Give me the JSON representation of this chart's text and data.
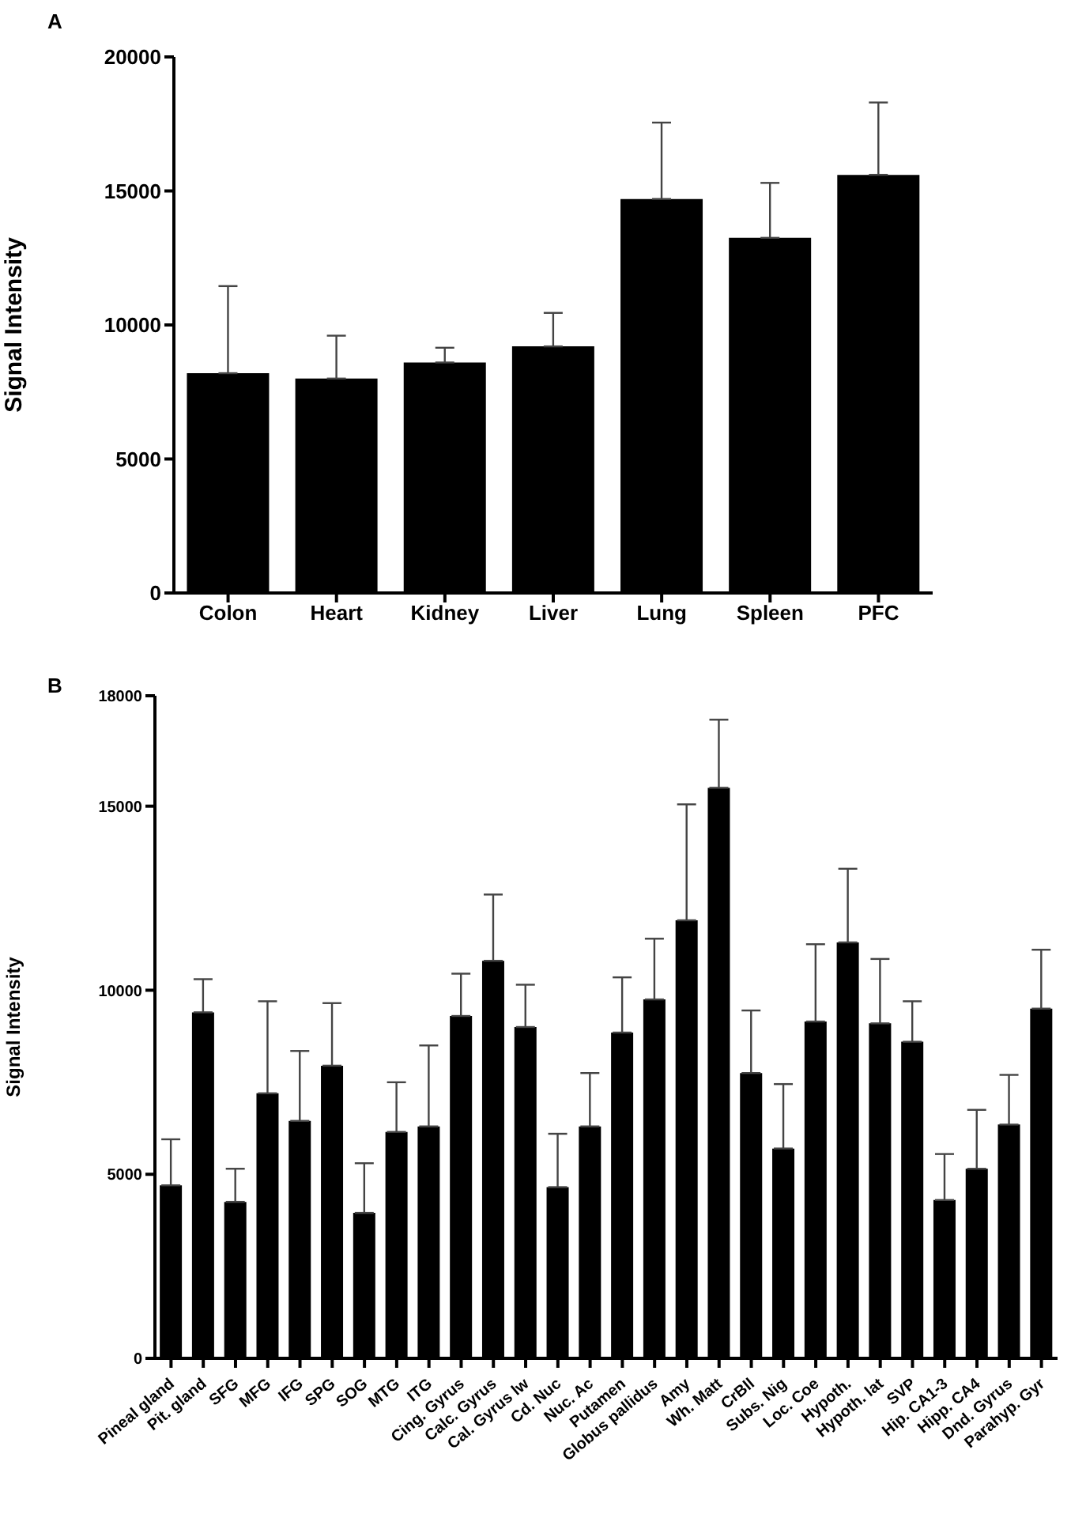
{
  "chart_data": [
    {
      "type": "bar",
      "title": "A",
      "ylabel": "Signal Intensity",
      "categories": [
        "Colon",
        "Heart",
        "Kidney",
        "Liver",
        "Lung",
        "Spleen",
        "PFC"
      ],
      "values": [
        8200,
        8000,
        8600,
        9200,
        14700,
        13250,
        15600
      ],
      "errors": [
        [
          8200,
          11450
        ],
        [
          8000,
          9600
        ],
        [
          8600,
          9150
        ],
        [
          9200,
          10450
        ],
        [
          14700,
          17550
        ],
        [
          13250,
          15300
        ],
        [
          15600,
          18300
        ]
      ],
      "color": "#000000",
      "ylim": [
        0,
        20000
      ],
      "yticks": [
        0,
        5000,
        10000,
        15000,
        20000
      ]
    },
    {
      "type": "bar",
      "title": "B",
      "ylabel": "Signal Intensity",
      "categories": [
        "Pineal gland",
        "Pit. gland",
        "SFG",
        "MFG",
        "IFG",
        "SPG",
        "SOG",
        "MTG",
        "ITG",
        "Cing. Gyrus",
        "Calc. Gyrus",
        "Cal. Gyrus lw",
        "Cd. Nuc",
        "Nuc. Ac",
        "Putamen",
        "Globus pallidus",
        "Amy",
        "Wh. Matt",
        "CrBll",
        "Subs. Nig",
        "Loc. Coe",
        "Hypoth.",
        "Hypoth. lat",
        "SVP",
        "Hip. CA1-3",
        "Hipp. CA4",
        "Dnd. Gyrus",
        "Parahyp. Gyr"
      ],
      "values": [
        4700,
        9400,
        4250,
        7200,
        6450,
        7950,
        3950,
        6150,
        6300,
        9300,
        10800,
        9000,
        4650,
        6300,
        8850,
        9750,
        11900,
        15500,
        7750,
        5700,
        9150,
        11300,
        9100,
        8600,
        4300,
        5150,
        6350,
        9500
      ],
      "errors": [
        [
          4700,
          5950
        ],
        [
          9400,
          10300
        ],
        [
          4250,
          5150
        ],
        [
          7200,
          9700
        ],
        [
          6450,
          8350
        ],
        [
          7950,
          9650
        ],
        [
          3950,
          5300
        ],
        [
          6150,
          7500
        ],
        [
          6300,
          8500
        ],
        [
          9300,
          10450
        ],
        [
          10800,
          12600
        ],
        [
          9000,
          10150
        ],
        [
          4650,
          6100
        ],
        [
          6300,
          7750
        ],
        [
          8850,
          10350
        ],
        [
          9750,
          11400
        ],
        [
          11900,
          15050
        ],
        [
          15500,
          17350
        ],
        [
          7750,
          9450
        ],
        [
          5700,
          7450
        ],
        [
          9150,
          11250
        ],
        [
          11300,
          13300
        ],
        [
          9100,
          10850
        ],
        [
          8600,
          9700
        ],
        [
          4300,
          5550
        ],
        [
          5150,
          6750
        ],
        [
          6350,
          7700
        ],
        [
          9500,
          11100
        ]
      ],
      "color": "#000000",
      "ylim": [
        0,
        18000
      ],
      "yticks": [
        0,
        5000,
        10000,
        15000,
        18000
      ]
    }
  ]
}
